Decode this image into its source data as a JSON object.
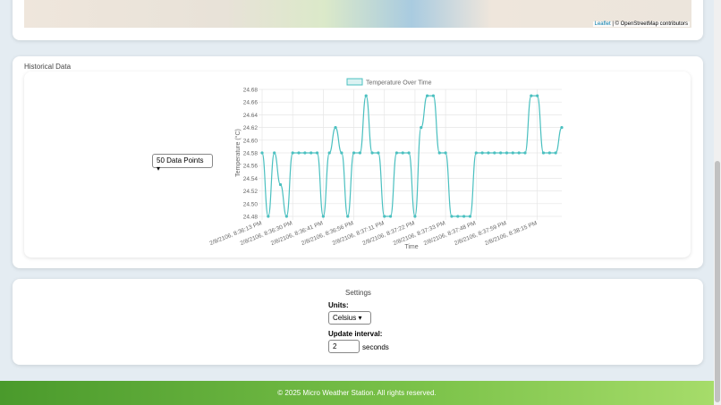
{
  "map": {
    "attribution_link": "Leaflet",
    "attribution_text": "| © OpenStreetMap contributors"
  },
  "history": {
    "title": "Historical Data",
    "select": "50 Data Points"
  },
  "chart_data": {
    "type": "line",
    "legend": "Temperature Over Time",
    "y_label": "Temperature (°C)",
    "x_label": "Time",
    "categories": [
      "2/8/2106, 8:36:13 PM",
      null,
      null,
      null,
      null,
      "2/8/2106, 8:36:30 PM",
      null,
      null,
      null,
      null,
      "2/8/2106, 8:36:41 PM",
      null,
      null,
      null,
      null,
      "2/8/2106, 8:36:56 PM",
      null,
      null,
      null,
      null,
      "2/8/2106, 8:37:11 PM",
      null,
      null,
      null,
      null,
      "2/8/2106, 8:37:22 PM",
      null,
      null,
      null,
      null,
      "2/8/2106, 8:37:33 PM",
      null,
      null,
      null,
      null,
      "2/8/2106, 8:37:48 PM",
      null,
      null,
      null,
      null,
      "2/8/2106, 8:37:59 PM",
      null,
      null,
      null,
      null,
      "2/8/2106, 8:38:15 PM",
      null,
      null,
      null,
      null
    ],
    "series": [
      {
        "name": "Temperature Over Time",
        "color": "#4bc0c0",
        "values": [
          24.58,
          24.48,
          24.58,
          24.53,
          24.48,
          24.58,
          24.58,
          24.58,
          24.58,
          24.58,
          24.48,
          24.58,
          24.62,
          24.58,
          24.48,
          24.58,
          24.58,
          24.67,
          24.58,
          24.58,
          24.48,
          24.48,
          24.58,
          24.58,
          24.58,
          24.48,
          24.62,
          24.67,
          24.67,
          24.58,
          24.58,
          24.48,
          24.48,
          24.48,
          24.48,
          24.58,
          24.58,
          24.58,
          24.58,
          24.58,
          24.58,
          24.58,
          24.58,
          24.58,
          24.67,
          24.67,
          24.58,
          24.58,
          24.58,
          24.62
        ]
      }
    ],
    "ylim": [
      24.48,
      24.68
    ],
    "yticks": [
      24.48,
      {
        "value": 24.5,
        "label": "24.50"
      },
      24.52,
      24.54,
      24.56,
      24.58,
      {
        "value": 24.6,
        "label": "24.60"
      },
      24.62,
      24.64,
      24.66,
      24.68
    ],
    "grid": true
  },
  "settings": {
    "title": "Settings",
    "units_label": "Units:",
    "units_value": "Celsius",
    "interval_label": "Update interval:",
    "interval_value": "2",
    "interval_unit": "seconds"
  },
  "footer": {
    "text": "© 2025 Micro Weather Station. All rights reserved."
  }
}
